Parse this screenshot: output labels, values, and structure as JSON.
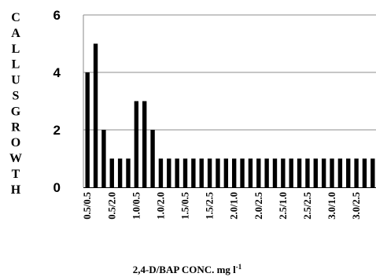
{
  "chart_data": {
    "type": "bar",
    "title": "",
    "xlabel": "2,4-D/BAP CONC. mg l",
    "xlabel_superscript": "-1",
    "ylabel": "CALLUSGROWTH",
    "ylim": [
      0,
      6
    ],
    "yticks": [
      "0",
      "2",
      "4",
      "6"
    ],
    "grid": true,
    "bar_color": "#000000",
    "categories": [
      "0.5/0.5",
      "",
      "",
      "0.5/2.0",
      "",
      "",
      "1.0/0.5",
      "",
      "",
      "1.0/2.0",
      "",
      "",
      "1.5/0.5",
      "",
      "",
      "1.5/2.5",
      "",
      "",
      "2.0/1.0",
      "",
      "",
      "2.0/2.5",
      "",
      "",
      "2.5/1.0",
      "",
      "",
      "2.5/2.5",
      "",
      "",
      "3.0/1.0",
      "",
      "",
      "3.0/2.5",
      "",
      ""
    ],
    "values": [
      4,
      5,
      2,
      1,
      1,
      1,
      3,
      3,
      2,
      1,
      1,
      1,
      1,
      1,
      1,
      1,
      1,
      1,
      1,
      1,
      1,
      1,
      1,
      1,
      1,
      1,
      1,
      1,
      1,
      1,
      1,
      1,
      1,
      1,
      1,
      1
    ]
  }
}
